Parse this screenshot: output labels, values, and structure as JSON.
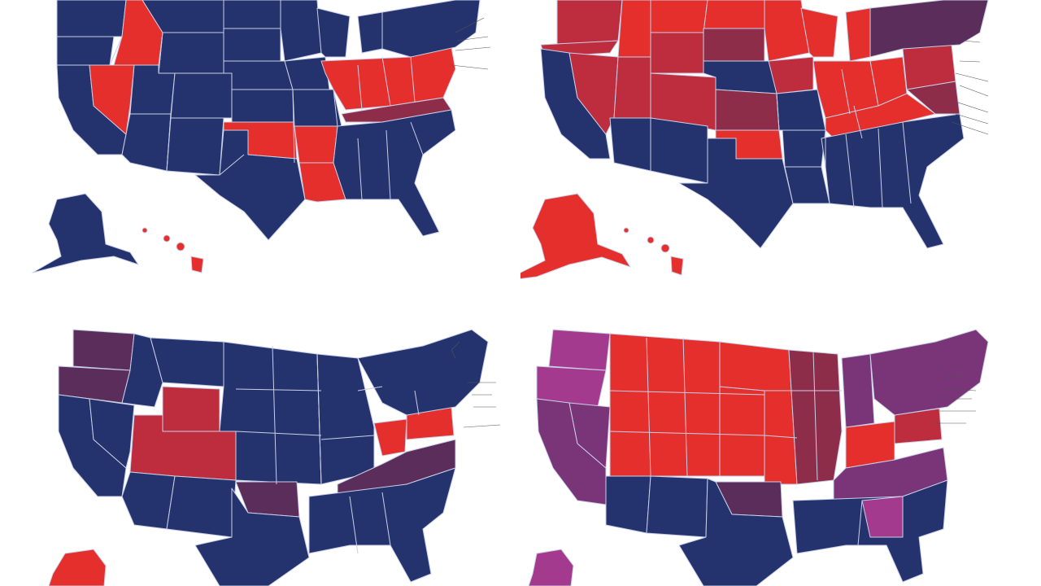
{
  "colors": {
    "blue": "#24336e",
    "red": "#e52f2c",
    "crimson": "#bd2d3e",
    "maroon": "#8e2d4a",
    "plum": "#5a2d5b",
    "purple": "#7a3478",
    "magenta": "#a33a8e",
    "background": "#ffffff"
  },
  "maps": [
    {
      "name": "map-top-left",
      "red_regions": [
        "idaho",
        "nevada",
        "oklahoma",
        "arkansas",
        "louisiana",
        "great-lakes-block",
        "hawaii"
      ]
    },
    {
      "name": "map-top-right",
      "red_regions": [
        "northwest",
        "mountain-west",
        "plains",
        "midwest",
        "alaska",
        "hawaii"
      ]
    },
    {
      "name": "map-bottom-left",
      "red_regions": [
        "wyoming",
        "utah-colorado",
        "ohio",
        "pennsylvania",
        "alaska"
      ]
    },
    {
      "name": "map-bottom-right",
      "red_regions": [
        "mountain-west",
        "plains",
        "midwest",
        "pennsylvania"
      ]
    }
  ]
}
